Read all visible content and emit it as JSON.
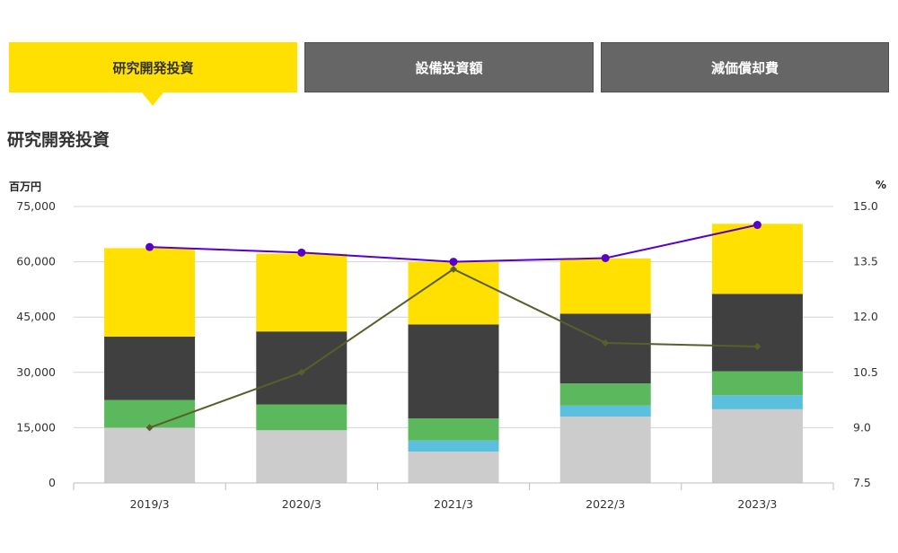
{
  "tabs": [
    {
      "label": "研究開発投資",
      "active": true
    },
    {
      "label": "設備投資額",
      "active": false
    },
    {
      "label": "減価償却費",
      "active": false
    }
  ],
  "section_title": "研究開発投資",
  "colors": {
    "tab_active": "#ffe000",
    "tab_inactive": "#666666",
    "seg_gray": "#cccccc",
    "seg_blue": "#5bc0de",
    "seg_green": "#5cb85c",
    "seg_dark": "#404040",
    "seg_yellow": "#ffe000",
    "line_purple": "#5500cc",
    "line_olive": "#5a5e2a"
  },
  "chart_data": {
    "type": "bar",
    "stacked": true,
    "categories": [
      "2019/3",
      "2020/3",
      "2021/3",
      "2022/3",
      "2023/3"
    ],
    "y_left": {
      "label": "百万円",
      "ticks": [
        "0",
        "15,000",
        "30,000",
        "45,000",
        "60,000",
        "75,000"
      ],
      "lim": [
        0,
        75000
      ]
    },
    "y_right": {
      "label": "%",
      "ticks": [
        "7.5",
        "9.0",
        "10.5",
        "12.0",
        "13.5",
        "15.0"
      ],
      "lim": [
        7.5,
        15.0
      ]
    },
    "series": [
      {
        "color": "seg_gray",
        "values": [
          15000,
          14300,
          8500,
          18000,
          20000
        ]
      },
      {
        "color": "seg_blue",
        "values": [
          0,
          0,
          3000,
          3000,
          3800
        ]
      },
      {
        "color": "seg_green",
        "values": [
          7500,
          7000,
          6000,
          6000,
          6500
        ]
      },
      {
        "color": "seg_dark",
        "values": [
          17200,
          19800,
          25500,
          18900,
          21000
        ]
      },
      {
        "color": "seg_yellow",
        "values": [
          24000,
          21100,
          16900,
          15000,
          19000
        ]
      }
    ],
    "lines": [
      {
        "color": "line_purple",
        "axis": "right",
        "marker": "circle",
        "values": [
          13.9,
          13.75,
          13.5,
          13.6,
          14.5
        ]
      },
      {
        "color": "line_olive",
        "axis": "right",
        "marker": "diamond",
        "values": [
          9.0,
          10.5,
          13.3,
          11.3,
          11.2
        ]
      }
    ],
    "grid": true
  }
}
